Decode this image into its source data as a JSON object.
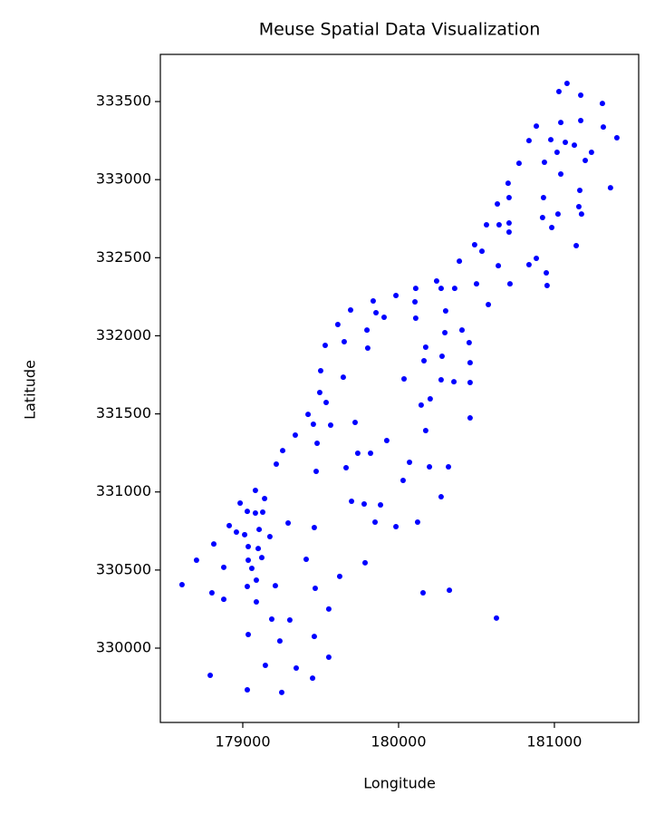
{
  "chart_data": {
    "type": "scatter",
    "title": "Meuse Spatial Data Visualization",
    "x_label": "Longitude",
    "y_label": "Latitude",
    "color": "#0000ff",
    "xlim": [
      178471,
      181541
    ],
    "ylim": [
      329524,
      333802
    ],
    "xticks": [
      179000,
      180000,
      181000
    ],
    "yticks": [
      330000,
      330500,
      331000,
      331500,
      332000,
      332500,
      333000,
      333500
    ],
    "x": [
      181081,
      181029,
      181169,
      181308,
      181041,
      181169,
      180884,
      180977,
      181070,
      181128,
      181401,
      180837,
      181314,
      181238,
      181017,
      181198,
      180936,
      180773,
      181041,
      181360,
      180703,
      181163,
      180930,
      180709,
      180634,
      181157,
      181174,
      181023,
      180924,
      180564,
      180645,
      180709,
      180983,
      180709,
      180488,
      180535,
      181140,
      180390,
      180884,
      180837,
      180640,
      180948,
      180953,
      180715,
      180500,
      180244,
      180273,
      180360,
      180110,
      180105,
      179983,
      179837,
      180576,
      180302,
      179692,
      179855,
      179907,
      180110,
      179610,
      180407,
      179797,
      180297,
      179651,
      180453,
      179529,
      179802,
      180174,
      180279,
      180459,
      180163,
      179500,
      179645,
      180035,
      180273,
      180355,
      180459,
      179494,
      180203,
      179535,
      180145,
      179419,
      180459,
      179453,
      179564,
      179721,
      180174,
      179337,
      179477,
      179924,
      179256,
      179738,
      179820,
      180070,
      179215,
      179663,
      180198,
      180320,
      179471,
      180029,
      179081,
      179140,
      180273,
      178983,
      179698,
      179779,
      179884,
      179029,
      179081,
      179128,
      179291,
      179849,
      180122,
      179983,
      178913,
      179459,
      178959,
      179105,
      179012,
      179174,
      178814,
      179035,
      179099,
      179122,
      178703,
      179035,
      179407,
      179785,
      178878,
      179058,
      179622,
      179087,
      178610,
      179209,
      179029,
      179465,
      178802,
      180157,
      180326,
      178878,
      179087,
      179552,
      180628,
      179186,
      179302,
      179459,
      179035,
      179238,
      179552,
      179145,
      179343,
      178791,
      179448,
      179029,
      179250
    ],
    "y": [
      333616,
      333564,
      333541,
      333488,
      333366,
      333378,
      333343,
      333256,
      333239,
      333221,
      333268,
      333250,
      333337,
      333175,
      333175,
      333123,
      333111,
      333105,
      333036,
      332948,
      332977,
      332931,
      332885,
      332885,
      332844,
      332827,
      332780,
      332780,
      332757,
      332711,
      332711,
      332722,
      332693,
      332664,
      332583,
      332542,
      332577,
      332478,
      332496,
      332455,
      332449,
      332403,
      332322,
      332333,
      332333,
      332351,
      332304,
      332304,
      332304,
      332217,
      332258,
      332223,
      332200,
      332159,
      332165,
      332148,
      332119,
      332113,
      332072,
      332037,
      332037,
      332020,
      331962,
      331956,
      331939,
      331921,
      331927,
      331869,
      331828,
      331840,
      331776,
      331735,
      331724,
      331718,
      331706,
      331701,
      331637,
      331596,
      331573,
      331556,
      331497,
      331474,
      331434,
      331428,
      331445,
      331393,
      331364,
      331312,
      331329,
      331265,
      331248,
      331248,
      331190,
      331178,
      331155,
      331161,
      331161,
      331132,
      331074,
      331010,
      330958,
      330969,
      330929,
      330940,
      330923,
      330917,
      330876,
      330865,
      330871,
      330801,
      330807,
      330807,
      330778,
      330784,
      330772,
      330743,
      330760,
      330726,
      330714,
      330667,
      330650,
      330638,
      330580,
      330563,
      330563,
      330569,
      330546,
      330517,
      330511,
      330459,
      330435,
      330406,
      330400,
      330395,
      330383,
      330354,
      330354,
      330371,
      330313,
      330296,
      330250,
      330192,
      330186,
      330180,
      330075,
      330087,
      330046,
      329942,
      329890,
      329872,
      329826,
      329808,
      329733,
      329716
    ]
  }
}
